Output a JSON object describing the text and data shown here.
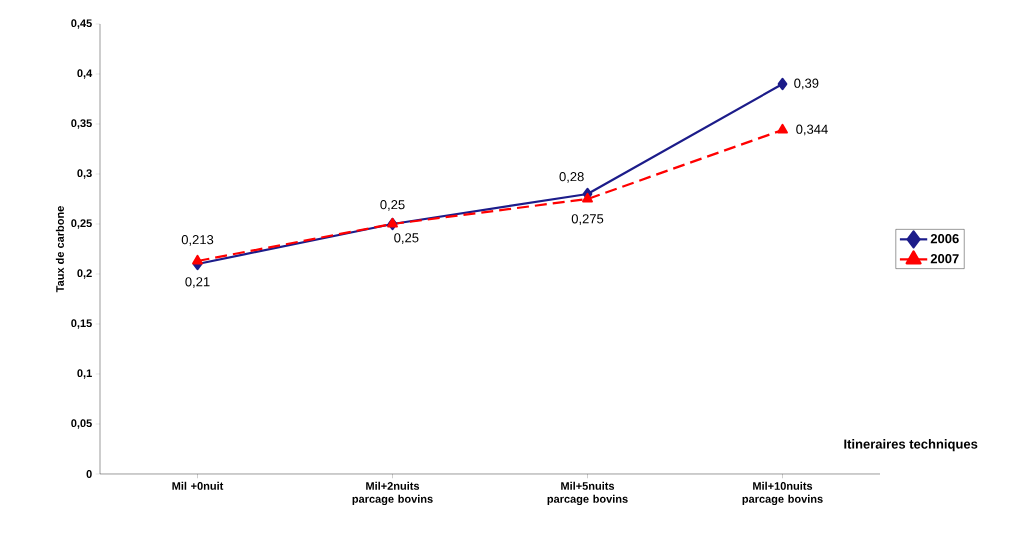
{
  "chart_data": {
    "type": "line",
    "xlabel": "Itineraires techniques",
    "ylabel": "Taux de carbone",
    "categories": [
      "Mil +0nuit",
      "Mil+2nuits parcage bovins",
      "Mil+5nuits parcage bovins",
      "Mil+10nuits parcage bovins"
    ],
    "series": [
      {
        "name": "2006",
        "color": "#1c1c8a",
        "marker": "diamond",
        "line_style": "solid",
        "values": [
          0.21,
          0.25,
          0.28,
          0.39
        ],
        "value_labels": [
          "0,21",
          "0,25",
          "0,28",
          "0,39"
        ]
      },
      {
        "name": "2007",
        "color": "#ff0000",
        "marker": "triangle",
        "line_style": "dashed",
        "values": [
          0.213,
          0.25,
          0.275,
          0.344
        ],
        "value_labels": [
          "0,213",
          "0,25",
          "0,275",
          "0,344"
        ]
      }
    ],
    "ylim": [
      0,
      0.45
    ],
    "yticks": [
      {
        "value": 0,
        "label": "0"
      },
      {
        "value": 0.05,
        "label": "0,05"
      },
      {
        "value": 0.1,
        "label": "0,1"
      },
      {
        "value": 0.15,
        "label": "0,15"
      },
      {
        "value": 0.2,
        "label": "0,2"
      },
      {
        "value": 0.25,
        "label": "0,25"
      },
      {
        "value": 0.3,
        "label": "0,3"
      },
      {
        "value": 0.35,
        "label": "0,35"
      },
      {
        "value": 0.4,
        "label": "0,4"
      },
      {
        "value": 0.45,
        "label": "0,45"
      }
    ],
    "grid": false,
    "legend": "right"
  }
}
